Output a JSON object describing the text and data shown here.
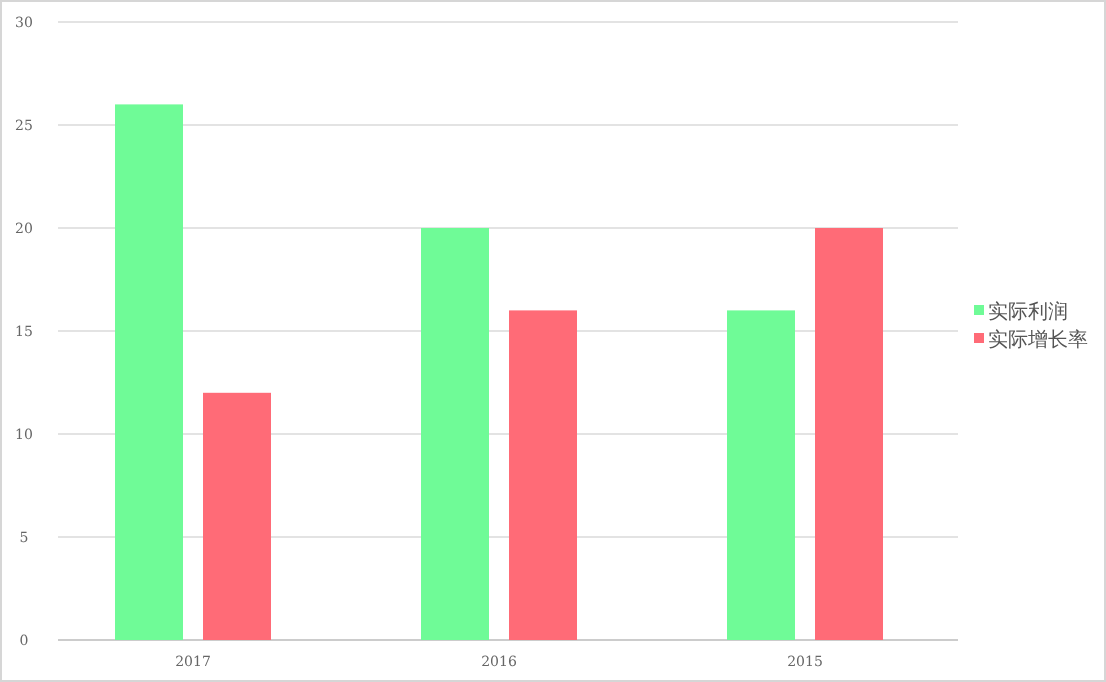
{
  "chart_data": {
    "type": "bar",
    "categories": [
      "2017",
      "2016",
      "2015"
    ],
    "series": [
      {
        "name": "实际利润",
        "color": "#6ffb97",
        "values": [
          26,
          20,
          16
        ]
      },
      {
        "name": "实际增长率",
        "color": "#ff6b77",
        "values": [
          12,
          16,
          20
        ]
      }
    ],
    "ylim": [
      0,
      30
    ],
    "yticks": [
      0,
      5,
      10,
      15,
      20,
      25,
      30
    ],
    "grid": "y",
    "legend": "right"
  }
}
